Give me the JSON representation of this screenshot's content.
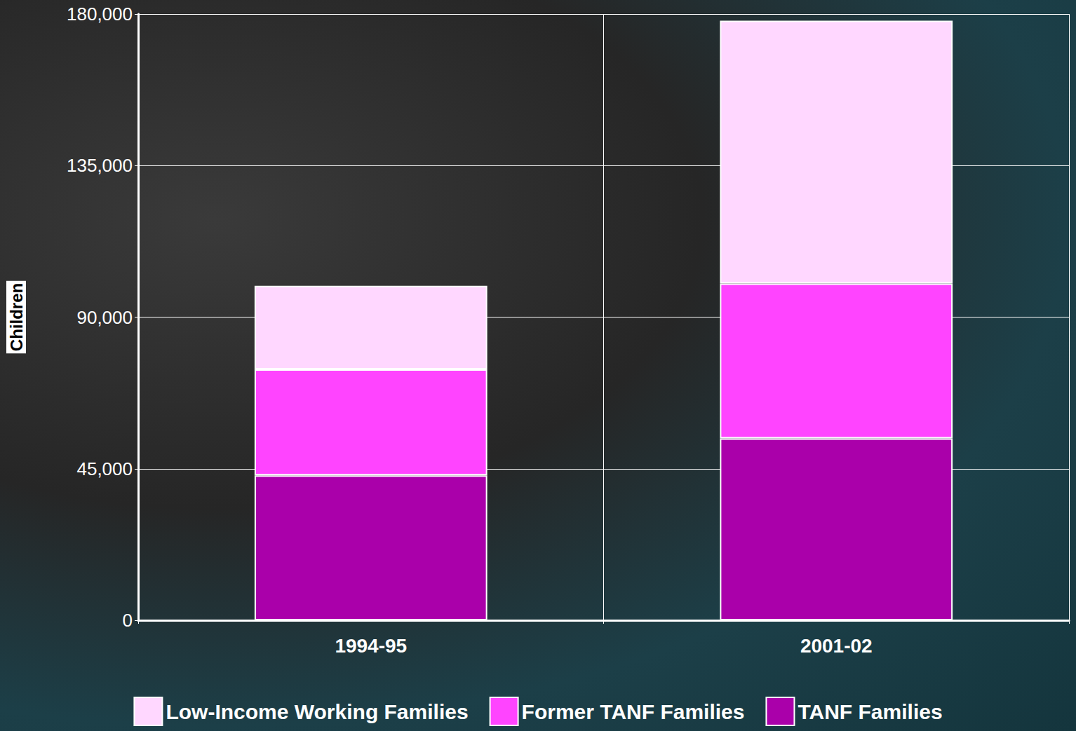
{
  "chart_data": {
    "type": "bar",
    "stacked": true,
    "grid": true,
    "legend": "bottom",
    "ylabel": "Children",
    "categories": [
      "1994-95",
      "2001-02"
    ],
    "series": [
      {
        "name": "Low-Income Working Families",
        "color": "#ffd7ff",
        "values": [
          24800,
          78000
        ]
      },
      {
        "name": "Former TANF Families",
        "color": "#ff44ff",
        "values": [
          31500,
          46000
        ]
      },
      {
        "name": "TANF Families",
        "color": "#aa00aa",
        "values": [
          43000,
          54000
        ]
      }
    ],
    "ylim": [
      0,
      180000
    ],
    "yticks": [
      0,
      {
        "value": 45000,
        "label": "45,000"
      },
      {
        "value": 90000,
        "label": "90,000"
      },
      {
        "value": 135000,
        "label": "135,000"
      },
      {
        "value": 180000,
        "label": "180,000"
      }
    ]
  }
}
